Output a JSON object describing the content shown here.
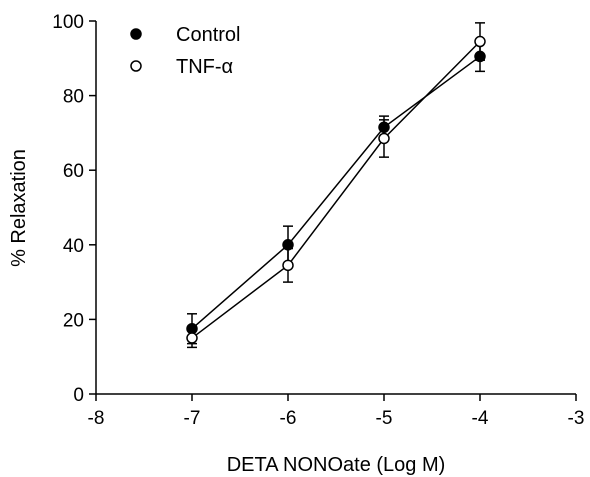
{
  "chart_data": {
    "type": "line",
    "xlabel": "DETA NONOate (Log M)",
    "ylabel": "% Relaxation",
    "xlim": [
      -8,
      -3
    ],
    "ylim": [
      0,
      100
    ],
    "xticks": [
      -8,
      -7,
      -6,
      -5,
      -4,
      -3
    ],
    "yticks": [
      0,
      20,
      40,
      60,
      80,
      100
    ],
    "xtick_labels": [
      "-8",
      "-7",
      "-6",
      "-5",
      "-4",
      "-3"
    ],
    "ytick_labels": [
      "0",
      "20",
      "40",
      "60",
      "80",
      "100"
    ],
    "legend_position": "top-left",
    "grid": false,
    "series": [
      {
        "name": "Control",
        "marker": "filled-circle",
        "color": "#000000",
        "x": [
          -7,
          -6,
          -5,
          -4
        ],
        "y": [
          17.5,
          40,
          71.5,
          90.5
        ],
        "error": [
          4,
          5,
          3,
          4
        ]
      },
      {
        "name": "TNF-α",
        "marker": "open-circle",
        "color": "#000000",
        "x": [
          -7,
          -6,
          -5,
          -4
        ],
        "y": [
          15,
          34.5,
          68.5,
          94.5
        ],
        "error": [
          2.5,
          4.5,
          5,
          5
        ]
      }
    ]
  }
}
